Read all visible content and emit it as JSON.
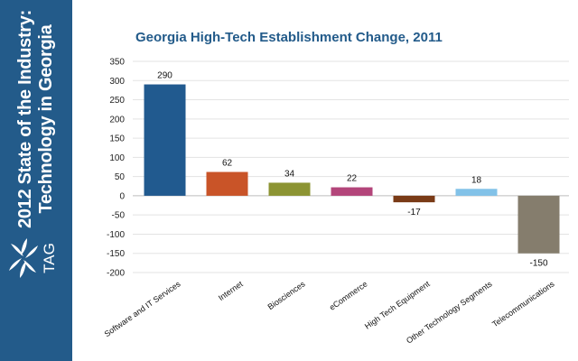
{
  "sidebar": {
    "title_line1": "2012 State of the Industry:",
    "title_line2": "Technology in Georgia",
    "logo_text": "TAG",
    "background": "#235b8a"
  },
  "chart_data": {
    "type": "bar",
    "title": "Georgia High-Tech Establishment Change, 2011",
    "xlabel": "",
    "ylabel": "",
    "categories": [
      "Software and IT Services",
      "Internet",
      "Biosciences",
      "eCommerce",
      "High Tech Equipment",
      "Other Technology Segments",
      "Telecommunications"
    ],
    "values": [
      290,
      62,
      34,
      22,
      -17,
      18,
      -150
    ],
    "data_labels": [
      "290",
      "62",
      "34",
      "22",
      "-17",
      "18",
      "-150"
    ],
    "colors": [
      "#215a8f",
      "#c95428",
      "#8c9433",
      "#b3457a",
      "#7a3b17",
      "#82c2e8",
      "#857d6d"
    ],
    "ylim": [
      -200,
      350
    ],
    "yticks": [
      350,
      300,
      250,
      200,
      150,
      100,
      50,
      0,
      -50,
      -100,
      -150,
      -200
    ],
    "grid": true,
    "legend": "none"
  }
}
